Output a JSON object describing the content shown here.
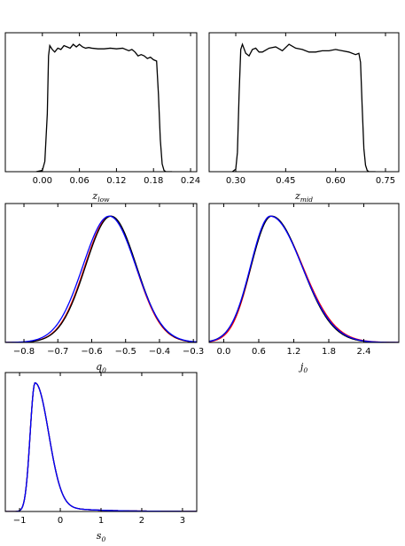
{
  "chart_data": [
    {
      "id": "z_low",
      "type": "line",
      "xlabel": "z",
      "xlabel_sub": "low",
      "xlim": [
        -0.06,
        0.25
      ],
      "ylim": [
        0,
        1.08
      ],
      "xticks": [
        0.0,
        0.06,
        0.12,
        0.18,
        0.24
      ],
      "xtick_labels": [
        "0.00",
        "0.06",
        "0.12",
        "0.18",
        "0.24"
      ],
      "grid": false,
      "series": [
        {
          "color": "#000000",
          "x": [
            -0.01,
            0.0,
            0.004,
            0.008,
            0.01,
            0.012,
            0.016,
            0.02,
            0.025,
            0.03,
            0.035,
            0.04,
            0.045,
            0.05,
            0.055,
            0.06,
            0.065,
            0.07,
            0.075,
            0.08,
            0.09,
            0.1,
            0.11,
            0.12,
            0.13,
            0.14,
            0.145,
            0.15,
            0.155,
            0.16,
            0.165,
            0.17,
            0.175,
            0.18,
            0.185,
            0.188,
            0.191,
            0.194,
            0.197,
            0.2,
            0.21
          ],
          "y": [
            0.0,
            0.01,
            0.08,
            0.45,
            0.9,
            0.98,
            0.95,
            0.93,
            0.96,
            0.95,
            0.98,
            0.97,
            0.96,
            0.99,
            0.97,
            0.99,
            0.97,
            0.96,
            0.965,
            0.96,
            0.955,
            0.955,
            0.96,
            0.955,
            0.96,
            0.94,
            0.95,
            0.93,
            0.9,
            0.91,
            0.9,
            0.88,
            0.89,
            0.87,
            0.86,
            0.6,
            0.25,
            0.06,
            0.01,
            0.0,
            0.0
          ]
        }
      ]
    },
    {
      "id": "z_mid",
      "type": "line",
      "xlabel": "z",
      "xlabel_sub": "mid",
      "xlim": [
        0.22,
        0.79
      ],
      "ylim": [
        0,
        1.08
      ],
      "xticks": [
        0.3,
        0.45,
        0.6,
        0.75
      ],
      "xtick_labels": [
        "0.30",
        "0.45",
        "0.60",
        "0.75"
      ],
      "grid": false,
      "series": [
        {
          "color": "#000000",
          "x": [
            0.29,
            0.3,
            0.305,
            0.31,
            0.315,
            0.32,
            0.33,
            0.34,
            0.35,
            0.36,
            0.37,
            0.38,
            0.4,
            0.42,
            0.44,
            0.46,
            0.48,
            0.5,
            0.52,
            0.54,
            0.56,
            0.58,
            0.6,
            0.62,
            0.64,
            0.66,
            0.67,
            0.675,
            0.68,
            0.685,
            0.69,
            0.695,
            0.7,
            0.72
          ],
          "y": [
            0.0,
            0.02,
            0.15,
            0.6,
            0.95,
            0.99,
            0.92,
            0.9,
            0.95,
            0.96,
            0.93,
            0.93,
            0.96,
            0.97,
            0.94,
            0.99,
            0.96,
            0.95,
            0.93,
            0.93,
            0.94,
            0.94,
            0.95,
            0.94,
            0.93,
            0.91,
            0.92,
            0.85,
            0.5,
            0.18,
            0.05,
            0.01,
            0.0,
            0.0
          ]
        }
      ]
    },
    {
      "id": "q0",
      "type": "line",
      "xlabel": "q",
      "xlabel_sub": "0",
      "xlim": [
        -0.855,
        -0.29
      ],
      "ylim": [
        0,
        1.1
      ],
      "xticks": [
        -0.8,
        -0.7,
        -0.6,
        -0.5,
        -0.4,
        -0.3
      ],
      "xtick_labels": [
        "−0.8",
        "−0.7",
        "−0.6",
        "−0.5",
        "−0.4",
        "−0.3"
      ],
      "grid": false,
      "series": [
        {
          "color": "#ff0000",
          "gaussian": {
            "mu": -0.545,
            "sigma": 0.075,
            "skew": 0.0
          }
        },
        {
          "color": "#000000",
          "gaussian": {
            "mu": -0.543,
            "sigma": 0.075,
            "skew": 0.0
          }
        },
        {
          "color": "#0000ff",
          "gaussian": {
            "mu": -0.548,
            "sigma": 0.078,
            "skew": 0.0
          }
        }
      ]
    },
    {
      "id": "j0",
      "type": "line",
      "xlabel": "j",
      "xlabel_sub": "0",
      "xlim": [
        -0.25,
        3.0
      ],
      "ylim": [
        0,
        1.1
      ],
      "xticks": [
        0.0,
        0.6,
        1.2,
        1.8,
        2.4
      ],
      "xtick_labels": [
        "0.0",
        "0.6",
        "1.2",
        "1.8",
        "2.4"
      ],
      "grid": false,
      "series": [
        {
          "color": "#ff0000",
          "skewed": {
            "mode": 0.8,
            "left": 0.33,
            "right": 0.55
          }
        },
        {
          "color": "#000000",
          "skewed": {
            "mode": 0.82,
            "left": 0.35,
            "right": 0.52
          }
        },
        {
          "color": "#0000ff",
          "skewed": {
            "mode": 0.8,
            "left": 0.34,
            "right": 0.54
          }
        }
      ]
    },
    {
      "id": "s0",
      "type": "line",
      "xlabel": "s",
      "xlabel_sub": "0",
      "xlim": [
        -1.35,
        3.35
      ],
      "ylim": [
        0,
        1.08
      ],
      "xticks": [
        -1,
        0,
        1,
        2,
        3
      ],
      "xtick_labels": [
        "−1",
        "0",
        "1",
        "2",
        "3"
      ],
      "grid": false,
      "series": [
        {
          "color": "#ff0000",
          "skewed": {
            "mode": -0.62,
            "left": 0.12,
            "right": 0.32,
            "tail": 0.06
          }
        },
        {
          "color": "#000000",
          "skewed": {
            "mode": -0.62,
            "left": 0.12,
            "right": 0.32,
            "tail": 0.06
          }
        },
        {
          "color": "#0000ff",
          "skewed": {
            "mode": -0.62,
            "left": 0.12,
            "right": 0.32,
            "tail": 0.06
          }
        }
      ]
    }
  ]
}
